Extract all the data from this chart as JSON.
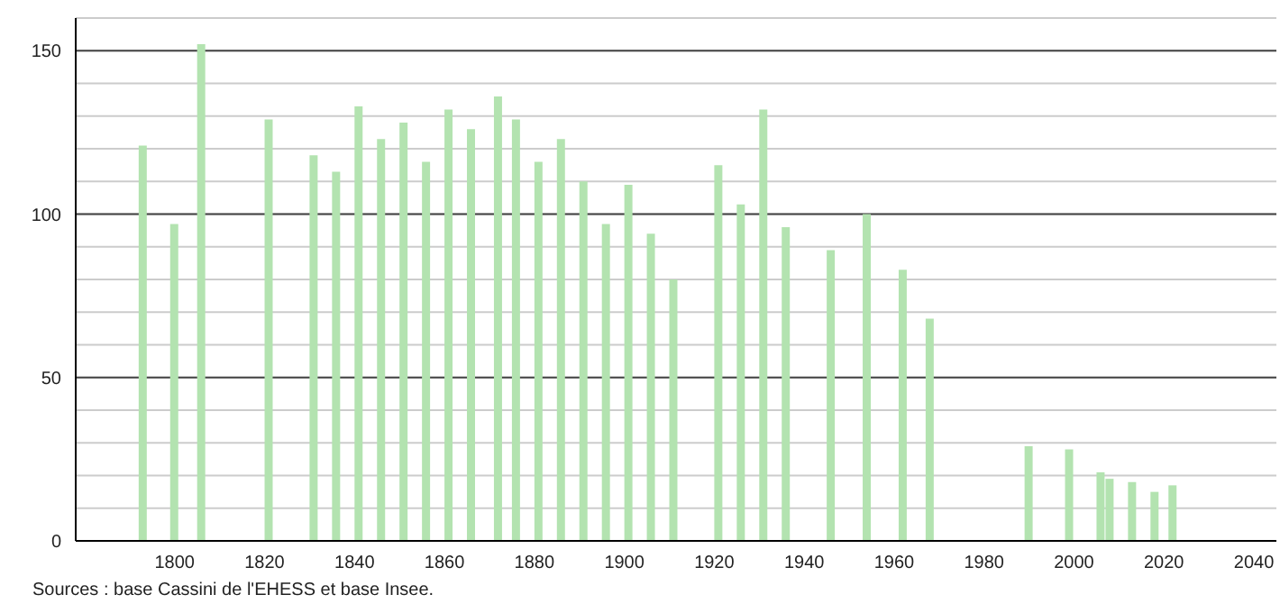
{
  "chart_data": {
    "type": "bar",
    "x": [
      1793,
      1800,
      1806,
      1821,
      1831,
      1836,
      1841,
      1846,
      1851,
      1856,
      1861,
      1866,
      1872,
      1876,
      1881,
      1886,
      1891,
      1896,
      1901,
      1906,
      1911,
      1921,
      1926,
      1931,
      1936,
      1946,
      1954,
      1962,
      1968,
      1990,
      1999,
      2006,
      2008,
      2013,
      2018,
      2022
    ],
    "values": [
      121,
      97,
      152,
      129,
      118,
      113,
      133,
      123,
      128,
      116,
      132,
      126,
      136,
      129,
      116,
      123,
      110,
      97,
      109,
      94,
      80,
      115,
      103,
      132,
      96,
      89,
      100,
      83,
      68,
      29,
      28,
      21,
      19,
      18,
      15,
      17
    ],
    "color": "#b3e3b0",
    "xlim": [
      1778,
      2045
    ],
    "xticks": [
      1800,
      1820,
      1840,
      1860,
      1880,
      1900,
      1920,
      1940,
      1960,
      1980,
      2000,
      2020,
      2040
    ],
    "ylim": [
      0,
      160
    ],
    "yticks": [
      0,
      {
        "value": 10,
        "label": null
      },
      {
        "value": 20,
        "label": null
      },
      {
        "value": 30,
        "label": null
      },
      {
        "value": 40,
        "label": null
      },
      50,
      {
        "value": 60,
        "label": null
      },
      {
        "value": 70,
        "label": null
      },
      {
        "value": 80,
        "label": null
      },
      {
        "value": 90,
        "label": null
      },
      100,
      {
        "value": 110,
        "label": null
      },
      {
        "value": 120,
        "label": null
      },
      {
        "value": 130,
        "label": null
      },
      {
        "value": 140,
        "label": null
      },
      150,
      {
        "value": 160,
        "label": null
      }
    ],
    "grid": "y",
    "annotations": [
      "Sources : base Cassini de l'EHESS et base Insee."
    ]
  }
}
